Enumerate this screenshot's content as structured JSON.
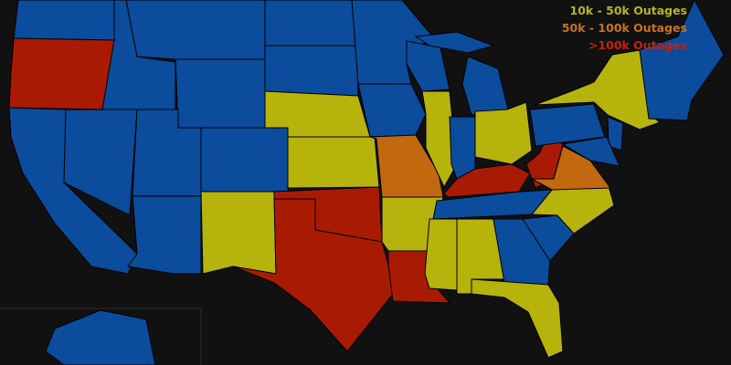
{
  "colors": {
    "background": "#111111",
    "none": "#0b4c9c",
    "low": "#b6b30c",
    "mid": "#c2680f",
    "high": "#a81b02",
    "border": "#000000"
  },
  "legend": {
    "low": {
      "label": "10k - 50k Outages",
      "color": "#b8b51e"
    },
    "mid": {
      "label": "50k - 100k Outages",
      "color": "#c8721e"
    },
    "high": {
      "label": ">100k Outages",
      "color": "#c4200e"
    }
  },
  "states": [
    {
      "id": "WA",
      "level": "none"
    },
    {
      "id": "OR",
      "level": "high"
    },
    {
      "id": "CA",
      "level": "none"
    },
    {
      "id": "NV",
      "level": "none"
    },
    {
      "id": "ID",
      "level": "none"
    },
    {
      "id": "MT",
      "level": "none"
    },
    {
      "id": "WY",
      "level": "none"
    },
    {
      "id": "UT",
      "level": "none"
    },
    {
      "id": "CO",
      "level": "none"
    },
    {
      "id": "AZ",
      "level": "none"
    },
    {
      "id": "NM",
      "level": "low"
    },
    {
      "id": "ND",
      "level": "none"
    },
    {
      "id": "SD",
      "level": "none"
    },
    {
      "id": "NE",
      "level": "low"
    },
    {
      "id": "KS",
      "level": "low"
    },
    {
      "id": "OK",
      "level": "high"
    },
    {
      "id": "TX",
      "level": "high"
    },
    {
      "id": "MN",
      "level": "none"
    },
    {
      "id": "IA",
      "level": "none"
    },
    {
      "id": "MO",
      "level": "mid"
    },
    {
      "id": "AR",
      "level": "low"
    },
    {
      "id": "LA",
      "level": "high"
    },
    {
      "id": "WI",
      "level": "none"
    },
    {
      "id": "IL",
      "level": "low"
    },
    {
      "id": "MI",
      "level": "none"
    },
    {
      "id": "UP",
      "level": "none"
    },
    {
      "id": "IN",
      "level": "none"
    },
    {
      "id": "OH",
      "level": "low"
    },
    {
      "id": "KY",
      "level": "high"
    },
    {
      "id": "TN",
      "level": "none"
    },
    {
      "id": "MS",
      "level": "low"
    },
    {
      "id": "AL",
      "level": "low"
    },
    {
      "id": "GA",
      "level": "none"
    },
    {
      "id": "SC",
      "level": "none"
    },
    {
      "id": "NC",
      "level": "low"
    },
    {
      "id": "FL",
      "level": "low"
    },
    {
      "id": "WV",
      "level": "high"
    },
    {
      "id": "VA",
      "level": "mid"
    },
    {
      "id": "PA",
      "level": "none"
    },
    {
      "id": "NY",
      "level": "low"
    },
    {
      "id": "NJ",
      "level": "none"
    },
    {
      "id": "MD",
      "level": "none"
    },
    {
      "id": "NE-REGION",
      "level": "none"
    },
    {
      "id": "AK",
      "level": "none"
    }
  ]
}
